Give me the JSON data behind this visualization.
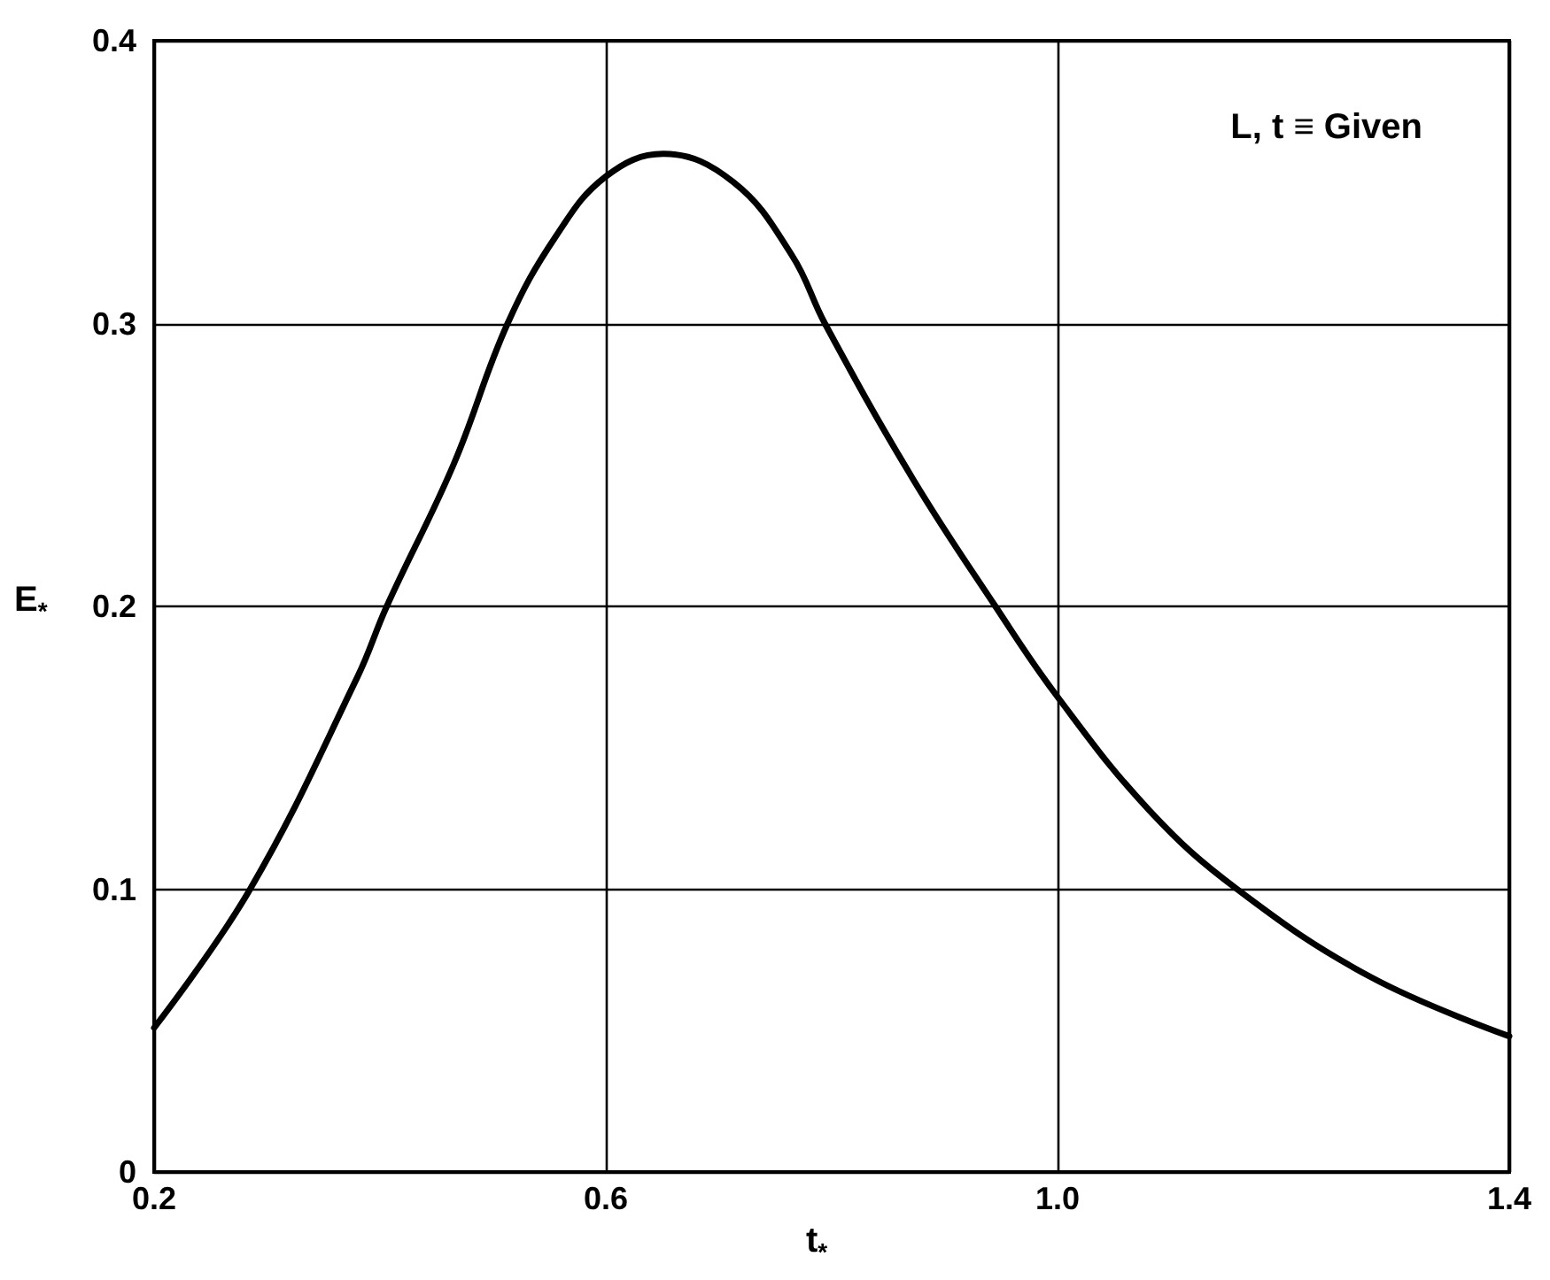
{
  "chart_data": {
    "type": "line",
    "xlabel": "t$_{*}$",
    "ylabel": "E$_{*}$",
    "annotations": [
      "L, t ≡ Given"
    ],
    "x": [
      0.2,
      0.285,
      0.38,
      0.406,
      0.465,
      0.513,
      0.556,
      0.6,
      0.651,
      0.713,
      0.765,
      0.794,
      0.872,
      0.945,
      1.0,
      1.081,
      1.159,
      1.277,
      1.4
    ],
    "series": [
      {
        "color": "#000000",
        "values": [
          0.051,
          0.1,
          0.175,
          0.2,
          0.25,
          0.3,
          0.331,
          0.352,
          0.36,
          0.35,
          0.324,
          0.3,
          0.245,
          0.2,
          0.168,
          0.128,
          0.1,
          0.069,
          0.048
        ]
      }
    ],
    "xlim": [
      0.2,
      1.4
    ],
    "xticks": [
      0.2,
      0.6,
      {
        "value": 1.0,
        "label": "1.0"
      },
      1.4
    ],
    "ylim": [
      0,
      0.4
    ],
    "yticks": [
      0,
      0.1,
      0.2,
      0.3,
      0.4
    ],
    "grid": true,
    "marker": "none",
    "line_style": "solid"
  }
}
